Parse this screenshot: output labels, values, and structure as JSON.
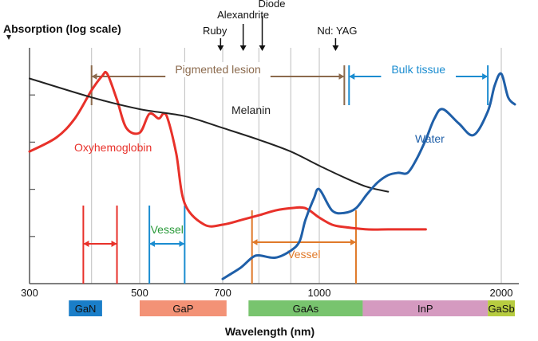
{
  "chart_data": {
    "type": "line",
    "title": "",
    "ylabel": "Absorption (log scale)",
    "xlabel": "Wavelength (nm)",
    "x_scale": "log",
    "xlim": [
      300,
      2100
    ],
    "ylim": [
      0,
      1
    ],
    "x_ticks": [
      300,
      500,
      700,
      1000,
      2000
    ],
    "gridlines_x": [
      400,
      500,
      600,
      700,
      800,
      900,
      1000,
      2000
    ],
    "series": [
      {
        "name": "Oxyhemoglobin",
        "color": "#e8312a",
        "x": [
          300,
          340,
          370,
          400,
          420,
          430,
          450,
          470,
          500,
          520,
          540,
          550,
          560,
          580,
          600,
          650,
          700,
          750,
          800,
          850,
          900,
          950,
          1000,
          1050,
          1100,
          1200,
          1300,
          1400,
          1500
        ],
        "y": [
          0.56,
          0.62,
          0.7,
          0.82,
          0.88,
          0.89,
          0.78,
          0.66,
          0.64,
          0.72,
          0.7,
          0.72,
          0.7,
          0.55,
          0.34,
          0.25,
          0.25,
          0.27,
          0.29,
          0.31,
          0.32,
          0.32,
          0.28,
          0.25,
          0.24,
          0.23,
          0.23,
          0.23,
          0.23
        ]
      },
      {
        "name": "Melanin",
        "color": "#222222",
        "x": [
          300,
          400,
          500,
          600,
          700,
          800,
          900,
          1000,
          1100,
          1200,
          1300
        ],
        "y": [
          0.87,
          0.79,
          0.74,
          0.71,
          0.66,
          0.61,
          0.56,
          0.5,
          0.45,
          0.41,
          0.39
        ]
      },
      {
        "name": "Water",
        "color": "#1f5fa8",
        "x": [
          700,
          720,
          750,
          780,
          800,
          850,
          900,
          930,
          950,
          980,
          1000,
          1050,
          1100,
          1150,
          1200,
          1250,
          1300,
          1350,
          1400,
          1450,
          1500,
          1550,
          1600,
          1700,
          1800,
          1900,
          1950,
          2000,
          2050,
          2100
        ],
        "y": [
          0.02,
          0.04,
          0.07,
          0.11,
          0.12,
          0.11,
          0.14,
          0.18,
          0.27,
          0.36,
          0.4,
          0.31,
          0.3,
          0.32,
          0.38,
          0.43,
          0.46,
          0.47,
          0.47,
          0.53,
          0.61,
          0.7,
          0.74,
          0.68,
          0.63,
          0.73,
          0.84,
          0.89,
          0.79,
          0.76
        ]
      }
    ],
    "series_labels": [
      "Oxyhemoglobin",
      "Melanin",
      "Water"
    ],
    "laser_markers": [
      {
        "label": "Alexandrite",
        "wavelength": 755
      },
      {
        "label": "Ruby",
        "wavelength": 694
      },
      {
        "label": "Diode",
        "wavelength": 810
      },
      {
        "label": "Nd: YAG",
        "wavelength": 1064
      }
    ],
    "ranges": [
      {
        "label": "Pigmented lesion",
        "from": 400,
        "to": 1100,
        "color": "#8b6a4d"
      },
      {
        "label": "Bulk tissue",
        "from": 1120,
        "to": 1900,
        "color": "#1a8cd0"
      },
      {
        "label": "",
        "from": 385,
        "to": 450,
        "color": "#e8312a"
      },
      {
        "label": "Vessel",
        "from": 520,
        "to": 600,
        "color": "#1a8cd0",
        "label_color": "#2a9a3a"
      },
      {
        "label": "Vessel",
        "from": 780,
        "to": 1150,
        "color": "#e07a2a",
        "label_color": "#e07a2a"
      }
    ],
    "materials": [
      {
        "label": "GaN",
        "from": 360,
        "to": 420,
        "color": "#1a7ec8"
      },
      {
        "label": "GaP",
        "from": 500,
        "to": 710,
        "color": "#f39276"
      },
      {
        "label": "GaAs",
        "from": 770,
        "to": 1180,
        "color": "#78c46e"
      },
      {
        "label": "InP",
        "from": 1180,
        "to": 1900,
        "color": "#d59ac0"
      },
      {
        "label": "GaSb",
        "from": 1900,
        "to": 2100,
        "color": "#b7cc40"
      }
    ]
  }
}
